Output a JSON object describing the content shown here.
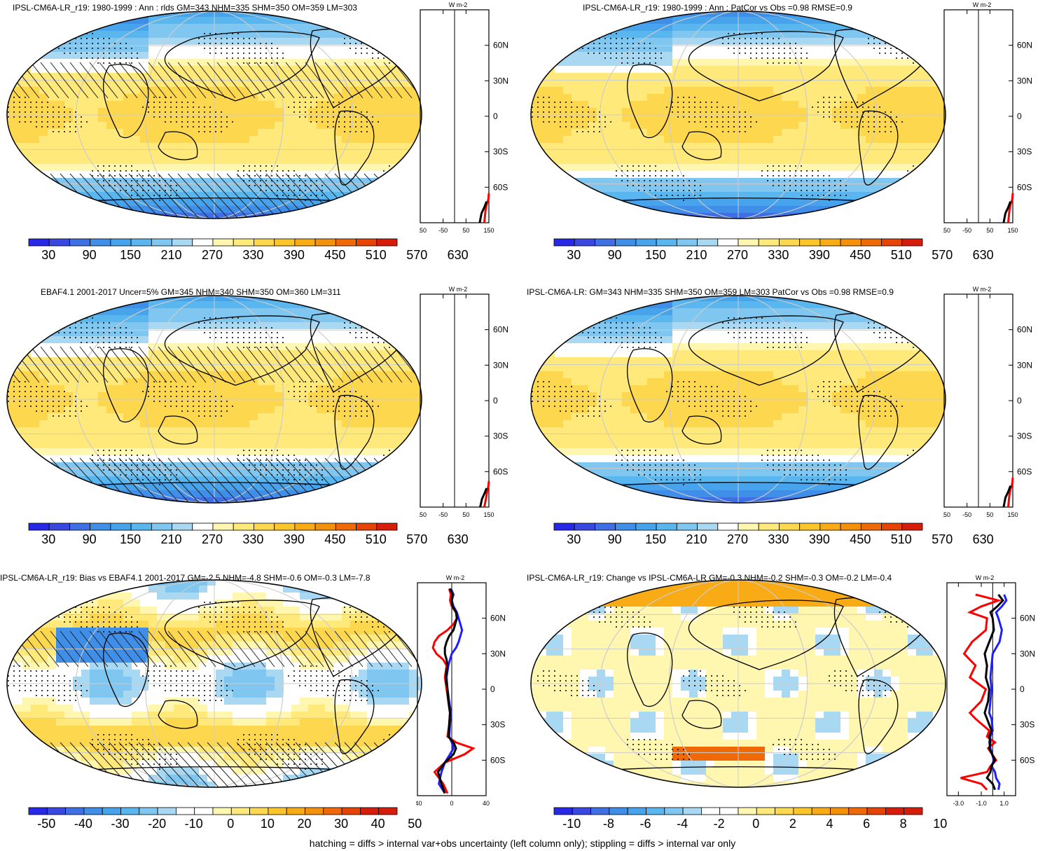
{
  "figure": {
    "footnote": "hatching = diffs > internal var+obs uncertainty (left column only); stippling = diffs > internal var only"
  },
  "colors": {
    "blue_dark": "#2f2fe0",
    "blue_mid": "#4aa3e8",
    "blue_light": "#a6d2f2",
    "white": "#ffffff",
    "yellow_light": "#fff3a0",
    "yellow": "#fcd84a",
    "orange": "#f5a623",
    "red": "#e0261d",
    "zonal_red": "#ff0000",
    "zonal_blue": "#1e1eff",
    "zonal_black": "#000000"
  },
  "colorbars": {
    "absolute": {
      "colors": [
        "#2828e8",
        "#3a48e2",
        "#3f6fe4",
        "#3f8ee8",
        "#46a3ec",
        "#5ab6ef",
        "#7fc6f0",
        "#a9d8f3",
        "#ffffff",
        "#fff6b0",
        "#ffe97a",
        "#fdd84e",
        "#fcc62a",
        "#f9ab16",
        "#f5900b",
        "#ef6a06",
        "#e64304",
        "#d81c0a"
      ],
      "labels": [
        "30",
        "90",
        "150",
        "210",
        "270",
        "330",
        "390",
        "450",
        "510",
        "570",
        "630"
      ]
    },
    "bias": {
      "colors": [
        "#2828e8",
        "#3a48e2",
        "#3f6fe4",
        "#3f8ee8",
        "#46a3ec",
        "#5ab6ef",
        "#7fc6f0",
        "#a9d8f3",
        "#ffffff",
        "#ffffff",
        "#fff6b0",
        "#ffe97a",
        "#fdd84e",
        "#fcc62a",
        "#f9ab16",
        "#f5900b",
        "#ef6a06",
        "#e64304",
        "#d81c0a",
        "#d81c0a"
      ],
      "labels": [
        "-50",
        "-40",
        "-30",
        "-20",
        "-10",
        "0",
        "10",
        "20",
        "30",
        "40",
        "50"
      ]
    },
    "change": {
      "colors": [
        "#2828e8",
        "#3a48e2",
        "#3f6fe4",
        "#3f8ee8",
        "#46a3ec",
        "#5ab6ef",
        "#7fc6f0",
        "#a9d8f3",
        "#ffffff",
        "#ffffff",
        "#fff6b0",
        "#ffe97a",
        "#fdd84e",
        "#fcc62a",
        "#f9ab16",
        "#f5900b",
        "#ef6a06",
        "#e64304",
        "#d81c0a",
        "#d81c0a"
      ],
      "labels": [
        "-10",
        "-8",
        "-6",
        "-4",
        "-2",
        "0",
        "2",
        "4",
        "6",
        "8",
        "10"
      ]
    }
  },
  "panels": [
    {
      "title": "IPSL-CM6A-LR_r19: 1980-1999 : Ann : rlds GM=343 NHM=335 SHM=350 OM=359 LM=303",
      "zonal_unit": "W m-2",
      "lat_ticks": [
        "60N",
        "30N",
        "0",
        "30S",
        "60S"
      ],
      "x_ticks": [
        "-150",
        "-50",
        "50",
        "150"
      ]
    },
    {
      "title": "IPSL-CM6A-LR_r19: 1980-1999 : Ann : PatCor vs Obs =0.98 RMSE=0.9",
      "zonal_unit": "W m-2",
      "lat_ticks": [
        "60N",
        "30N",
        "0",
        "30S",
        "60S"
      ],
      "x_ticks": [
        "-150",
        "-50",
        "50",
        "150"
      ]
    },
    {
      "title": "EBAF4.1 2001-2017 Uncer=5% GM=345 NHM=340 SHM=350 OM=360 LM=311",
      "zonal_unit": "W m-2",
      "lat_ticks": [
        "60N",
        "30N",
        "0",
        "30S",
        "60S"
      ],
      "x_ticks": [
        "-150",
        "-50",
        "50",
        "150"
      ]
    },
    {
      "title": "IPSL-CM6A-LR: GM=343 NHM=335 SHM=350 OM=359 LM=303 PatCor vs Obs =0.98 RMSE=0.9",
      "zonal_unit": "W m-2",
      "lat_ticks": [
        "60N",
        "30N",
        "0",
        "30S",
        "60S"
      ],
      "x_ticks": [
        "-150",
        "-50",
        "50",
        "150"
      ]
    },
    {
      "title": "IPSL-CM6A-LR_r19: Bias vs EBAF4.1 2001-2017 GM=-2.5 NHM=-4.8 SHM=-0.6 OM=-0.3 LM=-7.8",
      "zonal_unit": "W m-2",
      "lat_ticks": [
        "60N",
        "30N",
        "0",
        "30S",
        "60S"
      ],
      "x_ticks": [
        "-40",
        "0",
        "40"
      ]
    },
    {
      "title": "IPSL-CM6A-LR_r19: Change vs IPSL-CM6A-LR GM=-0.3 NHM=-0.2 SHM=-0.3 OM=-0.2 LM=-0.4",
      "zonal_unit": "W m-2",
      "lat_ticks": [
        "60N",
        "30N",
        "0",
        "30S",
        "60S"
      ],
      "x_ticks": [
        "-3.0",
        "-1.0",
        "1.0"
      ]
    }
  ],
  "chart_data": [
    {
      "type": "heatmap",
      "title": "IPSL-CM6A-LR_r19: 1980-1999 : Ann : rlds GM=343 NHM=335 SHM=350 OM=359 LM=303",
      "colorbar_ticks": [
        30,
        90,
        150,
        210,
        270,
        330,
        390,
        450,
        510,
        570,
        630
      ],
      "zonal_xlim": [
        -150,
        150
      ],
      "zonal_series": [
        {
          "color": "red",
          "lat": [
            -90,
            -80,
            -75,
            -70,
            -65
          ],
          "x": [
            130,
            135,
            140,
            148,
            150
          ]
        },
        {
          "color": "black",
          "lat": [
            -90,
            -82,
            -77,
            -72
          ],
          "x": [
            110,
            118,
            130,
            140
          ]
        }
      ]
    },
    {
      "type": "heatmap",
      "title": "IPSL-CM6A-LR_r19: 1980-1999 : Ann : PatCor vs Obs =0.98 RMSE=0.9",
      "colorbar_ticks": [
        30,
        90,
        150,
        210,
        270,
        330,
        390,
        450,
        510,
        570,
        630
      ],
      "zonal_xlim": [
        -150,
        150
      ],
      "zonal_series": [
        {
          "color": "red",
          "lat": [
            -90,
            -80,
            -75,
            -70,
            -65
          ],
          "x": [
            130,
            135,
            140,
            148,
            150
          ]
        },
        {
          "color": "black",
          "lat": [
            -90,
            -82,
            -77,
            -72
          ],
          "x": [
            110,
            118,
            130,
            140
          ]
        }
      ]
    },
    {
      "type": "heatmap",
      "title": "EBAF4.1 2001-2017 Uncer=5% GM=345 NHM=340 SHM=350 OM=360 LM=311",
      "colorbar_ticks": [
        30,
        90,
        150,
        210,
        270,
        330,
        390,
        450,
        510,
        570,
        630
      ],
      "zonal_xlim": [
        -150,
        150
      ],
      "zonal_series": [
        {
          "color": "red",
          "lat": [
            -90,
            -82,
            -77,
            -72,
            -68
          ],
          "x": [
            130,
            138,
            142,
            148,
            150
          ]
        },
        {
          "color": "black",
          "lat": [
            -90,
            -83,
            -78,
            -74
          ],
          "x": [
            112,
            120,
            132,
            140
          ]
        }
      ]
    },
    {
      "type": "heatmap",
      "title": "IPSL-CM6A-LR: GM=343 NHM=335 SHM=350 OM=359 LM=303 PatCor vs Obs =0.98 RMSE=0.9",
      "colorbar_ticks": [
        30,
        90,
        150,
        210,
        270,
        330,
        390,
        450,
        510,
        570,
        630
      ],
      "zonal_xlim": [
        -150,
        150
      ],
      "zonal_series": [
        {
          "color": "red",
          "lat": [
            -90,
            -80,
            -75,
            -70,
            -65
          ],
          "x": [
            130,
            135,
            140,
            148,
            150
          ]
        },
        {
          "color": "black",
          "lat": [
            -90,
            -82,
            -77,
            -72
          ],
          "x": [
            110,
            118,
            130,
            140
          ]
        }
      ]
    },
    {
      "type": "heatmap",
      "title": "IPSL-CM6A-LR_r19: Bias vs EBAF4.1 2001-2017 GM=-2.5 NHM=-4.8 SHM=-0.6 OM=-0.3 LM=-7.8",
      "colorbar_ticks": [
        -50,
        -40,
        -30,
        -20,
        -10,
        0,
        10,
        20,
        30,
        40,
        50
      ],
      "zonal_xlim": [
        -40,
        40
      ],
      "zonal_series": [
        {
          "color": "red",
          "lat": [
            -88,
            -80,
            -70,
            -62,
            -55,
            -50,
            -45,
            -40,
            -30,
            -20,
            -10,
            0,
            10,
            20,
            25,
            30,
            35,
            40,
            45,
            50,
            55,
            60,
            65,
            70,
            75,
            80,
            85
          ],
          "x": [
            -5,
            -10,
            -20,
            -8,
            15,
            25,
            5,
            -5,
            -3,
            -2,
            -4,
            -6,
            -8,
            -6,
            -10,
            -18,
            -22,
            -20,
            -15,
            -5,
            2,
            6,
            5,
            0,
            -2,
            -1,
            -3
          ]
        },
        {
          "color": "blue",
          "lat": [
            -88,
            -80,
            -70,
            -62,
            -55,
            -50,
            -45,
            -40,
            -30,
            -20,
            -10,
            0,
            10,
            20,
            25,
            30,
            35,
            40,
            45,
            50,
            55,
            60,
            65,
            70,
            75,
            80,
            85
          ],
          "x": [
            -8,
            -15,
            -12,
            -8,
            -2,
            2,
            0,
            -3,
            -2,
            -1,
            -3,
            -5,
            -6,
            -4,
            -2,
            0,
            5,
            8,
            10,
            12,
            10,
            8,
            6,
            2,
            0,
            2,
            -1
          ]
        },
        {
          "color": "black",
          "lat": [
            -88,
            -80,
            -70,
            -62,
            -55,
            -50,
            -45,
            -40,
            -30,
            -20,
            -10,
            0,
            10,
            20,
            25,
            30,
            35,
            40,
            45,
            50,
            55,
            60,
            65,
            70,
            75,
            80,
            85
          ],
          "x": [
            -8,
            -12,
            -16,
            -8,
            2,
            5,
            2,
            -4,
            -3,
            -2,
            -4,
            -5,
            -7,
            -5,
            -6,
            -8,
            -8,
            -6,
            -3,
            2,
            4,
            6,
            5,
            1,
            0,
            1,
            -2
          ]
        }
      ]
    },
    {
      "type": "heatmap",
      "title": "IPSL-CM6A-LR_r19: Change vs IPSL-CM6A-LR GM=-0.3 NHM=-0.2 SHM=-0.3 OM=-0.2 LM=-0.4",
      "colorbar_ticks": [
        -10,
        -8,
        -6,
        -4,
        -2,
        0,
        2,
        4,
        6,
        8,
        10
      ],
      "zonal_xlim": [
        -4,
        2
      ],
      "zonal_series": [
        {
          "color": "red",
          "lat": [
            -85,
            -80,
            -75,
            -70,
            -65,
            -60,
            -50,
            -45,
            -40,
            -35,
            -25,
            -20,
            -10,
            0,
            10,
            20,
            30,
            40,
            50,
            60,
            65,
            70,
            75,
            80
          ],
          "x": [
            -0.5,
            -1.0,
            -2.8,
            -0.5,
            -0.2,
            0.3,
            -0.4,
            0.2,
            -0.5,
            -0.3,
            -1.5,
            -2.0,
            -1.0,
            -0.6,
            -2.0,
            -1.5,
            -2.5,
            -1.8,
            -0.6,
            -0.5,
            -2.0,
            -1.0,
            0.5,
            -1.5
          ]
        },
        {
          "color": "blue",
          "lat": [
            -85,
            -80,
            -75,
            -70,
            -65,
            -60,
            -50,
            -45,
            -40,
            -35,
            -25,
            -20,
            -10,
            0,
            10,
            20,
            30,
            40,
            50,
            60,
            65,
            70,
            75,
            80
          ],
          "x": [
            0.5,
            0.6,
            0.3,
            0.2,
            -0.1,
            0.1,
            -0.2,
            -0.3,
            -0.2,
            0.0,
            -0.1,
            -0.3,
            -0.2,
            -0.1,
            -0.2,
            -0.1,
            0.0,
            0.6,
            0.8,
            0.5,
            0.3,
            0.8,
            1.2,
            1.0
          ]
        },
        {
          "color": "black",
          "lat": [
            -85,
            -80,
            -75,
            -70,
            -65,
            -60,
            -50,
            -45,
            -40,
            -35,
            -25,
            -20,
            -10,
            0,
            10,
            20,
            30,
            40,
            50,
            60,
            65,
            70,
            75,
            80
          ],
          "x": [
            0.2,
            0.0,
            -0.5,
            -0.2,
            -0.1,
            0.2,
            -0.3,
            -0.2,
            -0.3,
            -0.1,
            -0.5,
            -0.7,
            -0.4,
            -0.3,
            -0.6,
            -0.5,
            -0.7,
            -0.3,
            0.1,
            0.0,
            -0.2,
            0.4,
            0.9,
            0.5
          ]
        }
      ]
    }
  ]
}
